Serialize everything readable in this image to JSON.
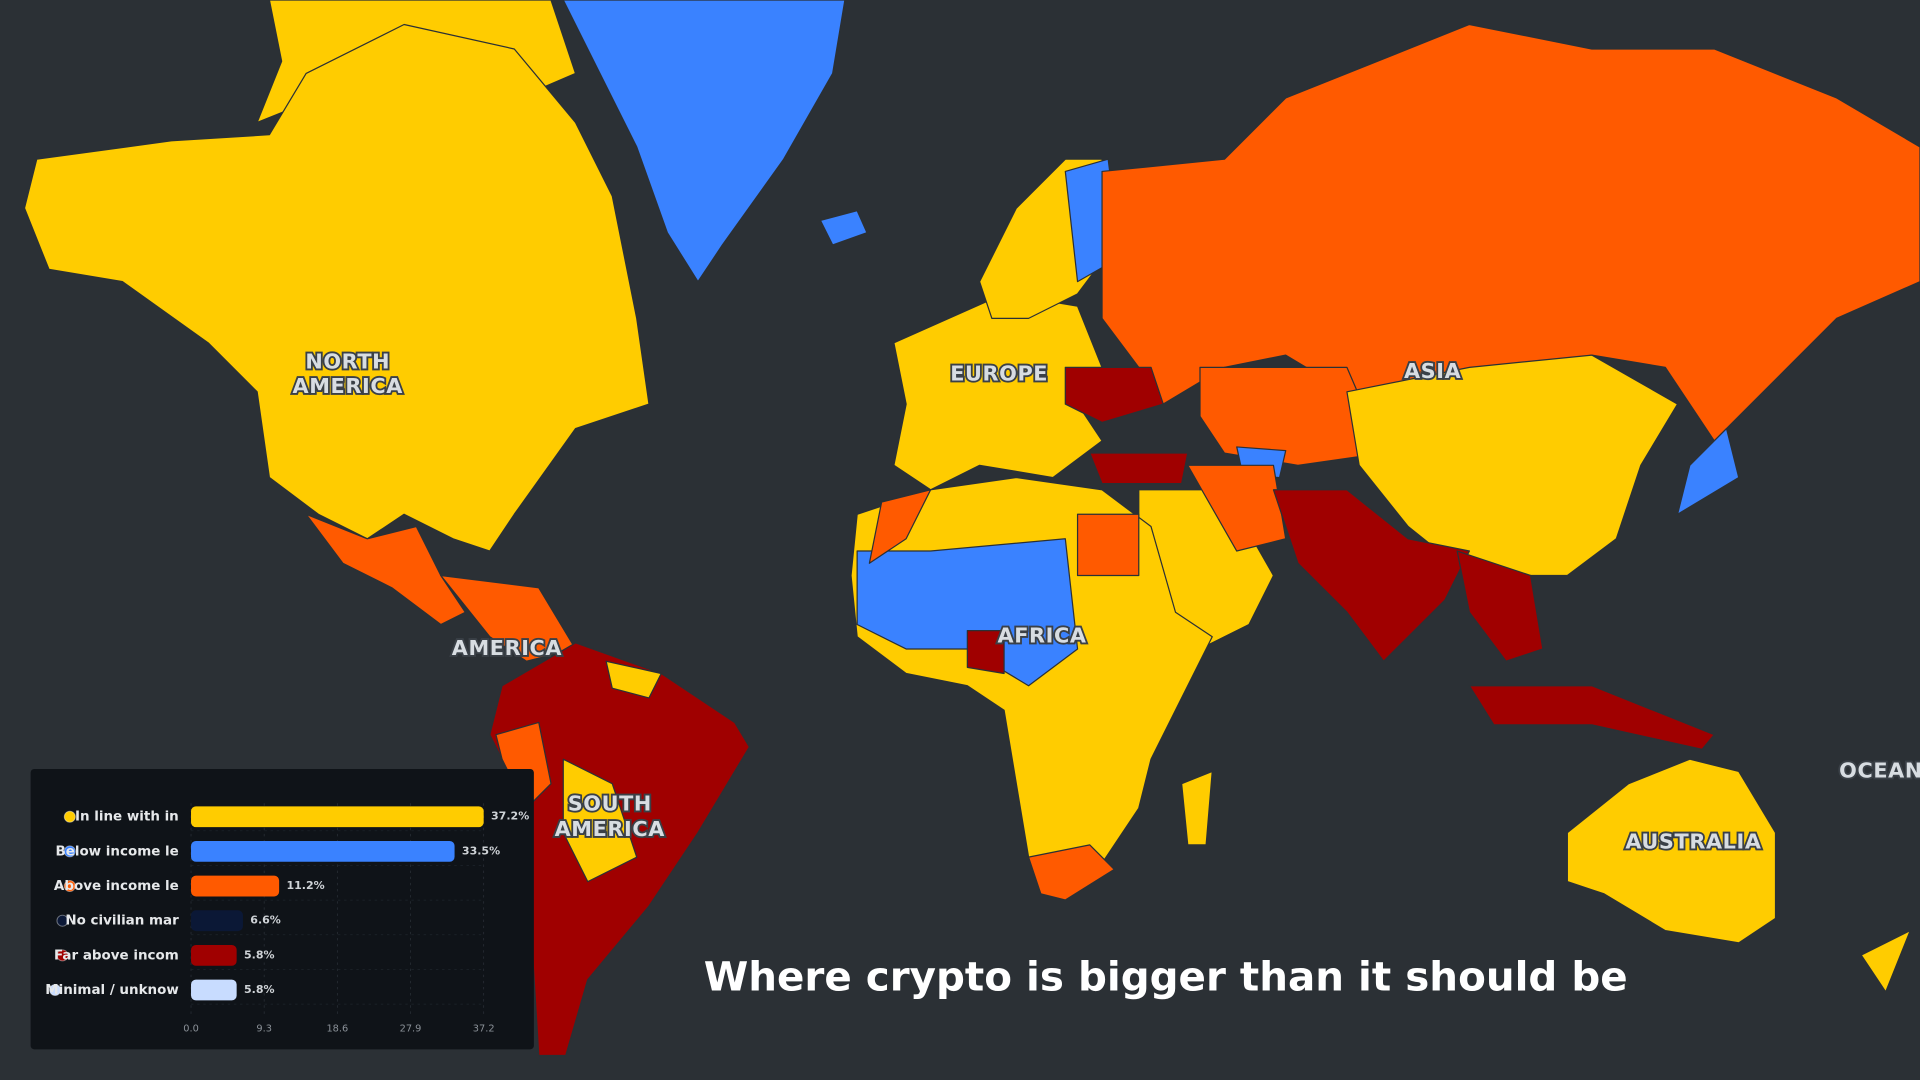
{
  "map": {
    "labels": [
      [
        "NORTH",
        "AMERICA"
      ],
      [
        "EUROPE"
      ],
      [
        "ASIA"
      ],
      [
        "AMERICA"
      ],
      [
        "AFRICA"
      ],
      [
        "SOUTH",
        "AMERICA"
      ],
      [
        "AUSTRALIA"
      ],
      [
        "OCEAN"
      ]
    ]
  },
  "caption": "Where crypto is bigger than it should be",
  "chart_data": {
    "type": "bar",
    "orientation": "horizontal",
    "categories": [
      "In line with in",
      "Below income le",
      "Above income le",
      "No civilian mar",
      "Far above incom",
      "Minimal / unknow"
    ],
    "values": [
      37.2,
      33.5,
      11.2,
      6.6,
      5.8,
      5.8
    ],
    "value_labels": [
      "37.2%",
      "33.5%",
      "11.2%",
      "6.6%",
      "5.8%",
      "5.8%"
    ],
    "colors": [
      "#ffcc00",
      "#3a82ff",
      "#ff5a00",
      "#0b1836",
      "#a00000",
      "#c8dcff"
    ],
    "xlim": [
      0,
      37.2
    ],
    "xticks": [
      {
        "value": 0,
        "label": "0.0"
      },
      9.3,
      18.6,
      27.9,
      37.2
    ],
    "grid": true
  }
}
